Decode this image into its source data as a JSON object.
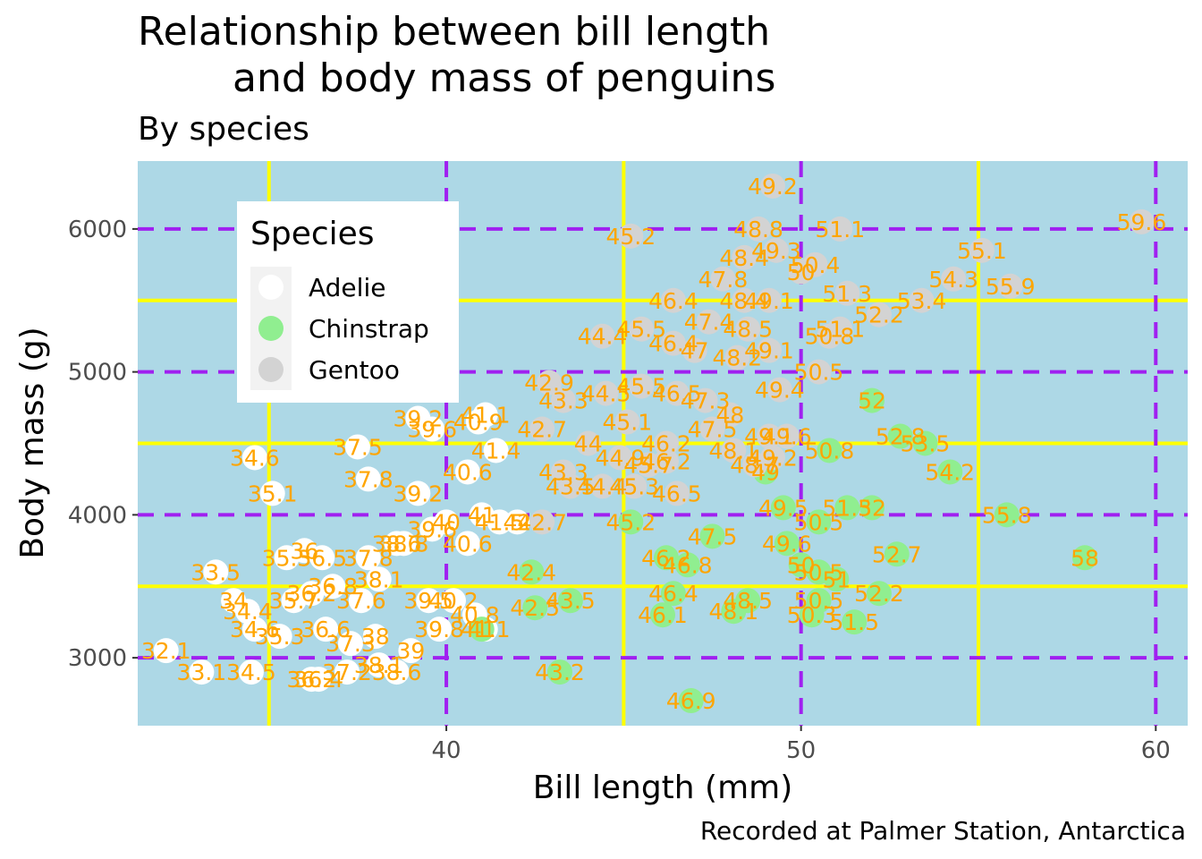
{
  "chart_data": {
    "type": "scatter",
    "title_line1": "Relationship between bill length",
    "title_line2": "and body mass of penguins",
    "subtitle": "By species",
    "xlabel": "Bill length (mm)",
    "ylabel": "Body mass (g)",
    "caption": "Recorded at Palmer Station, Antarctica",
    "xlim": [
      31.3,
      60.9
    ],
    "ylim": [
      2525,
      6475
    ],
    "x_ticks": [
      40,
      50,
      60
    ],
    "y_ticks": [
      3000,
      4000,
      5000,
      6000
    ],
    "x_minor_ticks": [
      35,
      45,
      55
    ],
    "y_minor_ticks": [
      3500,
      4500,
      5500
    ],
    "grid": true,
    "colors": {
      "panel": "#add8e6",
      "major_grid": "#a020f0",
      "minor_grid": "#ffff00",
      "label_text": "#ffa500"
    },
    "legend": {
      "title": "Species",
      "placement": "top-left inside",
      "entries": [
        {
          "name": "Adelie",
          "color": "#ffffff"
        },
        {
          "name": "Chinstrap",
          "color": "#90ee90"
        },
        {
          "name": "Gentoo",
          "color": "#d3d3d3"
        }
      ]
    },
    "series": [
      {
        "name": "Adelie",
        "color": "#ffffff",
        "points": [
          [
            34.6,
            4400
          ],
          [
            35.1,
            4150
          ],
          [
            37.5,
            4475
          ],
          [
            37.8,
            4250
          ],
          [
            39.2,
            4675
          ],
          [
            39.6,
            4600
          ],
          [
            40.9,
            4650
          ],
          [
            41.1,
            4700
          ],
          [
            40.6,
            4300
          ],
          [
            41.4,
            4450
          ],
          [
            39.2,
            4150
          ],
          [
            37.8,
            3700
          ],
          [
            38.8,
            3800
          ],
          [
            40.0,
            3950
          ],
          [
            41.0,
            4000
          ],
          [
            35.5,
            3700
          ],
          [
            36.0,
            3750
          ],
          [
            36.5,
            3700
          ],
          [
            38.6,
            3800
          ],
          [
            39.6,
            3900
          ],
          [
            40.6,
            3800
          ],
          [
            41.5,
            3950
          ],
          [
            42.0,
            3950
          ],
          [
            33.5,
            3600
          ],
          [
            34.0,
            3400
          ],
          [
            34.4,
            3325
          ],
          [
            35.7,
            3400
          ],
          [
            36.2,
            3450
          ],
          [
            36.8,
            3500
          ],
          [
            37.6,
            3400
          ],
          [
            38.1,
            3550
          ],
          [
            39.5,
            3400
          ],
          [
            40.2,
            3400
          ],
          [
            40.8,
            3300
          ],
          [
            41.1,
            3200
          ],
          [
            34.6,
            3200
          ],
          [
            35.3,
            3150
          ],
          [
            36.6,
            3200
          ],
          [
            37.3,
            3100
          ],
          [
            38.0,
            3150
          ],
          [
            39.0,
            3050
          ],
          [
            32.1,
            3050
          ],
          [
            33.1,
            2900
          ],
          [
            34.5,
            2900
          ],
          [
            36.2,
            2850
          ],
          [
            36.4,
            2850
          ],
          [
            37.2,
            2900
          ],
          [
            38.1,
            2950
          ],
          [
            38.6,
            2900
          ],
          [
            39.8,
            3200
          ]
        ]
      },
      {
        "name": "Chinstrap",
        "color": "#90ee90",
        "points": [
          [
            52.0,
            4800
          ],
          [
            52.8,
            4550
          ],
          [
            53.5,
            4500
          ],
          [
            54.2,
            4300
          ],
          [
            50.8,
            4450
          ],
          [
            49.0,
            4300
          ],
          [
            49.5,
            4050
          ],
          [
            50.5,
            3950
          ],
          [
            51.3,
            4050
          ],
          [
            52.0,
            4050
          ],
          [
            52.7,
            3725
          ],
          [
            55.8,
            4000
          ],
          [
            58.0,
            3700
          ],
          [
            50.0,
            3650
          ],
          [
            50.5,
            3600
          ],
          [
            51.0,
            3550
          ],
          [
            52.2,
            3450
          ],
          [
            50.5,
            3400
          ],
          [
            51.5,
            3250
          ],
          [
            50.3,
            3300
          ],
          [
            42.4,
            3600
          ],
          [
            43.5,
            3400
          ],
          [
            42.5,
            3350
          ],
          [
            41.0,
            3200
          ],
          [
            43.2,
            2900
          ],
          [
            46.9,
            2700
          ],
          [
            45.2,
            3950
          ],
          [
            46.2,
            3700
          ],
          [
            46.8,
            3650
          ],
          [
            47.5,
            3850
          ],
          [
            46.4,
            3450
          ],
          [
            46.1,
            3300
          ],
          [
            48.1,
            3325
          ],
          [
            48.5,
            3400
          ],
          [
            49.6,
            3800
          ]
        ]
      },
      {
        "name": "Gentoo",
        "color": "#d3d3d3",
        "points": [
          [
            49.2,
            6300
          ],
          [
            59.6,
            6050
          ],
          [
            51.1,
            6000
          ],
          [
            48.8,
            6000
          ],
          [
            45.2,
            5950
          ],
          [
            55.1,
            5850
          ],
          [
            48.4,
            5800
          ],
          [
            49.3,
            5850
          ],
          [
            50.4,
            5750
          ],
          [
            54.3,
            5650
          ],
          [
            55.9,
            5600
          ],
          [
            47.8,
            5650
          ],
          [
            50.0,
            5700
          ],
          [
            51.3,
            5550
          ],
          [
            53.4,
            5500
          ],
          [
            46.4,
            5500
          ],
          [
            48.4,
            5500
          ],
          [
            49.1,
            5500
          ],
          [
            52.2,
            5400
          ],
          [
            47.4,
            5350
          ],
          [
            48.5,
            5300
          ],
          [
            50.8,
            5250
          ],
          [
            51.1,
            5300
          ],
          [
            49.1,
            5150
          ],
          [
            44.4,
            5250
          ],
          [
            45.5,
            5300
          ],
          [
            46.4,
            5200
          ],
          [
            47.0,
            5150
          ],
          [
            48.2,
            5100
          ],
          [
            50.5,
            5000
          ],
          [
            42.9,
            4925
          ],
          [
            43.3,
            4800
          ],
          [
            44.5,
            4850
          ],
          [
            45.5,
            4900
          ],
          [
            46.5,
            4850
          ],
          [
            47.3,
            4800
          ],
          [
            48.0,
            4700
          ],
          [
            49.4,
            4875
          ],
          [
            49.6,
            4550
          ],
          [
            48.1,
            4450
          ],
          [
            49.1,
            4550
          ],
          [
            47.5,
            4600
          ],
          [
            46.2,
            4500
          ],
          [
            45.1,
            4650
          ],
          [
            44.0,
            4500
          ],
          [
            42.7,
            4600
          ],
          [
            43.3,
            4300
          ],
          [
            44.9,
            4400
          ],
          [
            46.2,
            4375
          ],
          [
            48.7,
            4350
          ],
          [
            49.2,
            4400
          ],
          [
            45.7,
            4350
          ],
          [
            46.5,
            4150
          ],
          [
            45.3,
            4200
          ],
          [
            44.4,
            4200
          ],
          [
            42.7,
            3950
          ],
          [
            43.5,
            4200
          ]
        ]
      }
    ]
  }
}
